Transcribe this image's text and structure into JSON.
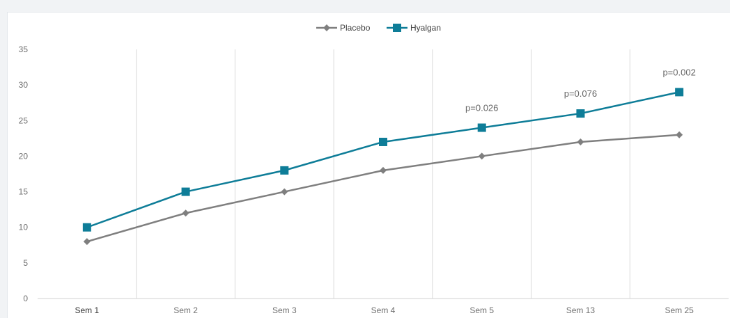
{
  "chart_data": {
    "type": "line",
    "categories": [
      "Sem 1",
      "Sem 2",
      "Sem 3",
      "Sem 4",
      "Sem 5",
      "Sem 13",
      "Sem 25"
    ],
    "series": [
      {
        "name": "Placebo",
        "values": [
          8,
          12,
          15,
          18,
          20,
          22,
          23
        ],
        "color": "#7f7f7f",
        "marker": "diamond"
      },
      {
        "name": "Hyalgan",
        "values": [
          10,
          15,
          18,
          22,
          24,
          26,
          29
        ],
        "color": "#0e7d98",
        "marker": "square"
      }
    ],
    "ylim": [
      0,
      35
    ],
    "yticks": [
      0,
      5,
      10,
      15,
      20,
      25,
      30,
      35
    ],
    "title": "",
    "xlabel": "",
    "ylabel": "",
    "grid": "vertical",
    "legend_position": "top-center",
    "annotations": [
      {
        "text": "p=0.026",
        "category": "Sem 5",
        "series": "Hyalgan"
      },
      {
        "text": "p=0.076",
        "category": "Sem 13",
        "series": "Hyalgan"
      },
      {
        "text": "p=0.002",
        "category": "Sem 25",
        "series": "Hyalgan"
      }
    ]
  }
}
